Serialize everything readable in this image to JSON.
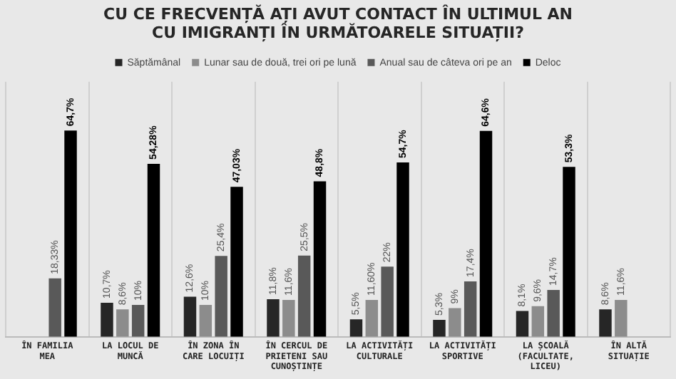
{
  "chart_data": {
    "type": "bar",
    "title": "CU CE FRECVENȚĂ AȚI AVUT CONTACT ÎN ULTIMUL AN CU IMIGRANȚI ÎN URMĂTOARELE SITUAȚII?",
    "categories": [
      "ÎN FAMILIA MEA",
      "LA LOCUL DE MUNCĂ",
      "ÎN ZONA ÎN CARE LOCUIȚI",
      "ÎN CERCUL DE PRIETENI SAU CUNOȘTINȚE",
      "LA ACTIVITĂȚI CULTURALE",
      "LA ACTIVITĂȚI SPORTIVE",
      "LA ȘCOALĂ (FACULTATE, LICEU)",
      "ÎN ALTĂ SITUAȚIE"
    ],
    "series": [
      {
        "name": "Săptămânal",
        "color": "#262626",
        "values": [
          null,
          10.7,
          12.6,
          11.8,
          5.5,
          5.3,
          8.1,
          8.6
        ],
        "value_labels": [
          null,
          "10,7%",
          "12,6%",
          "11,8%",
          "5,5%",
          "5,3%",
          "8,1%",
          "8,6%"
        ]
      },
      {
        "name": "Lunar sau de două, trei ori pe lună",
        "color": "#8c8c8c",
        "values": [
          null,
          8.6,
          10,
          11.6,
          11.6,
          9,
          9.6,
          11.6
        ],
        "value_labels": [
          null,
          "8,6%",
          "10%",
          "11,6%",
          "11,60%",
          "9%",
          "9,6%",
          "11,6%"
        ]
      },
      {
        "name": "Anual sau de câteva ori pe an",
        "color": "#595959",
        "values": [
          18.33,
          10,
          25.4,
          25.5,
          22,
          17.4,
          14.7,
          null
        ],
        "value_labels": [
          "18,33%",
          "10%",
          "25,4%",
          "25,5%",
          "22%",
          "17,4%",
          "14,7%",
          null
        ]
      },
      {
        "name": "Deloc",
        "color": "#000000",
        "values": [
          64.7,
          54.28,
          47.03,
          48.8,
          54.7,
          64.6,
          53.3,
          null
        ],
        "value_labels": [
          "64,7%",
          "54,28%",
          "47,03%",
          "48,8%",
          "54,7%",
          "64,6%",
          "53,3%",
          null
        ]
      }
    ],
    "legend": "top",
    "grid": "x"
  }
}
